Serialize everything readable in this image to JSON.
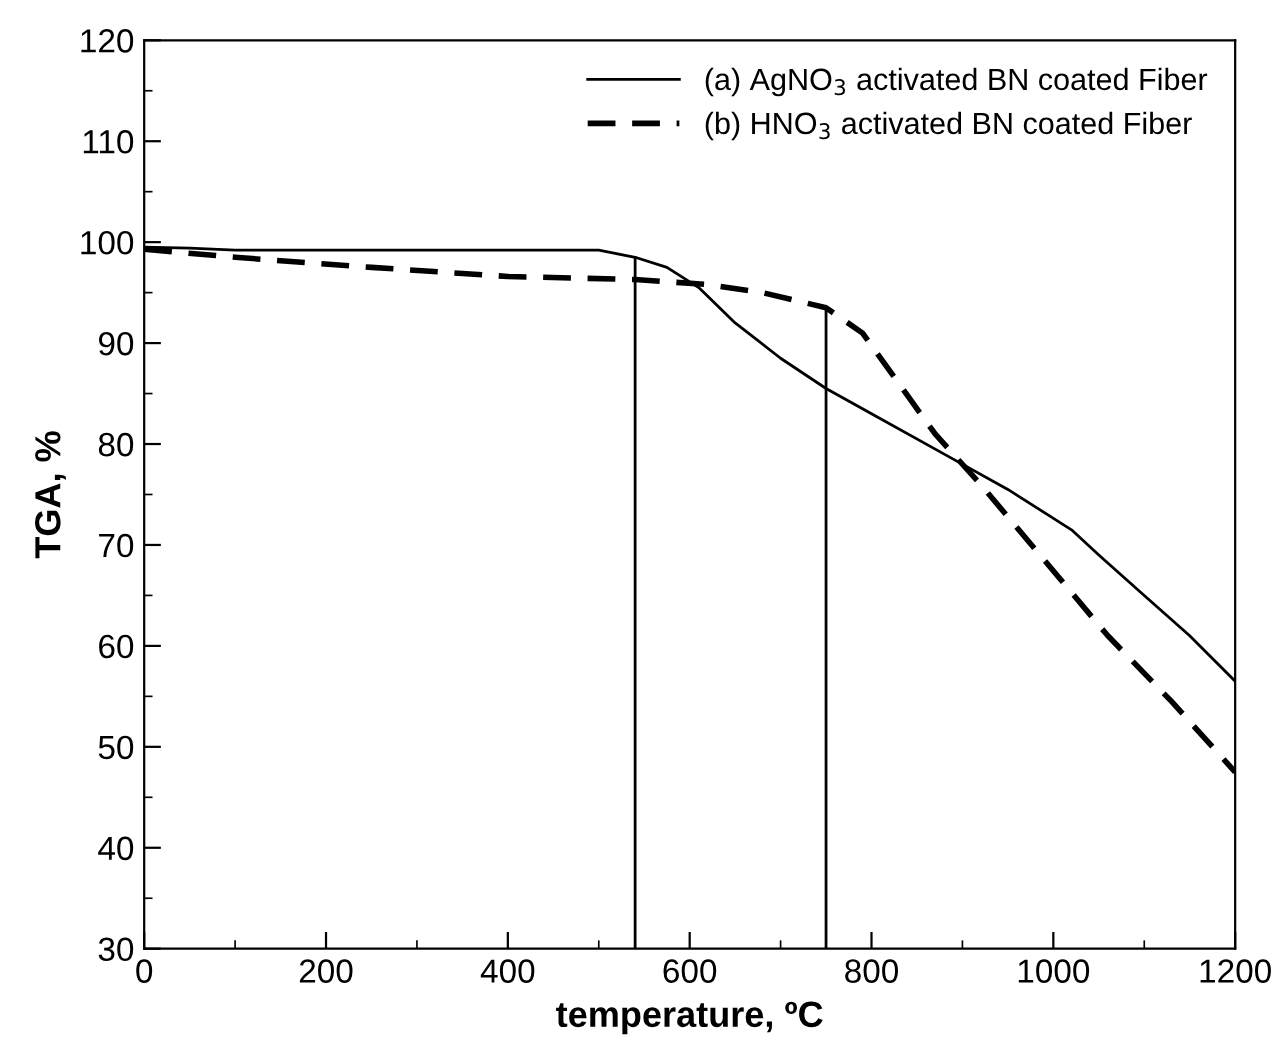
{
  "chart_data": {
    "type": "line",
    "xlabel": "temperature, ºC",
    "ylabel": "TGA, %",
    "xlim": [
      0,
      1200
    ],
    "xticks": [
      0,
      200,
      400,
      600,
      800,
      1000,
      1200
    ],
    "ylim": [
      30,
      120
    ],
    "yticks": [
      30,
      40,
      50,
      60,
      70,
      80,
      90,
      100,
      110,
      120
    ],
    "grid": false,
    "legend": "top right",
    "series": [
      {
        "name": "(a) AgNO$_{3}$ activated BN coated Fiber",
        "color": "#000000",
        "line_style": "solid",
        "x": [
          0,
          50,
          100,
          300,
          500,
          540,
          575,
          610,
          650,
          700,
          750,
          800,
          880,
          950,
          1020,
          1050,
          1100,
          1150,
          1200
        ],
        "values": [
          99.5,
          99.4,
          99.2,
          99.2,
          99.2,
          98.5,
          97.5,
          95.5,
          92,
          88.5,
          85.5,
          83,
          79,
          75.5,
          71.5,
          69,
          65,
          61,
          56.5
        ]
      },
      {
        "name": "(b) HNO$_{3}$ activated BN coated Fiber",
        "color": "#000000",
        "line_style": "dashed",
        "x": [
          0,
          100,
          250,
          400,
          540,
          620,
          680,
          750,
          790,
          830,
          870,
          920,
          990,
          1060,
          1130,
          1200
        ],
        "values": [
          99.3,
          98.5,
          97.5,
          96.6,
          96.3,
          95.8,
          95,
          93.5,
          91,
          86,
          81,
          76,
          68.5,
          61,
          54.5,
          47.5
        ]
      }
    ],
    "ref_lines": [
      {
        "axis": "x",
        "value": 540,
        "color": "#000000",
        "line_style": "solid"
      },
      {
        "axis": "x",
        "value": 750,
        "color": "#000000",
        "line_style": "solid"
      }
    ]
  }
}
